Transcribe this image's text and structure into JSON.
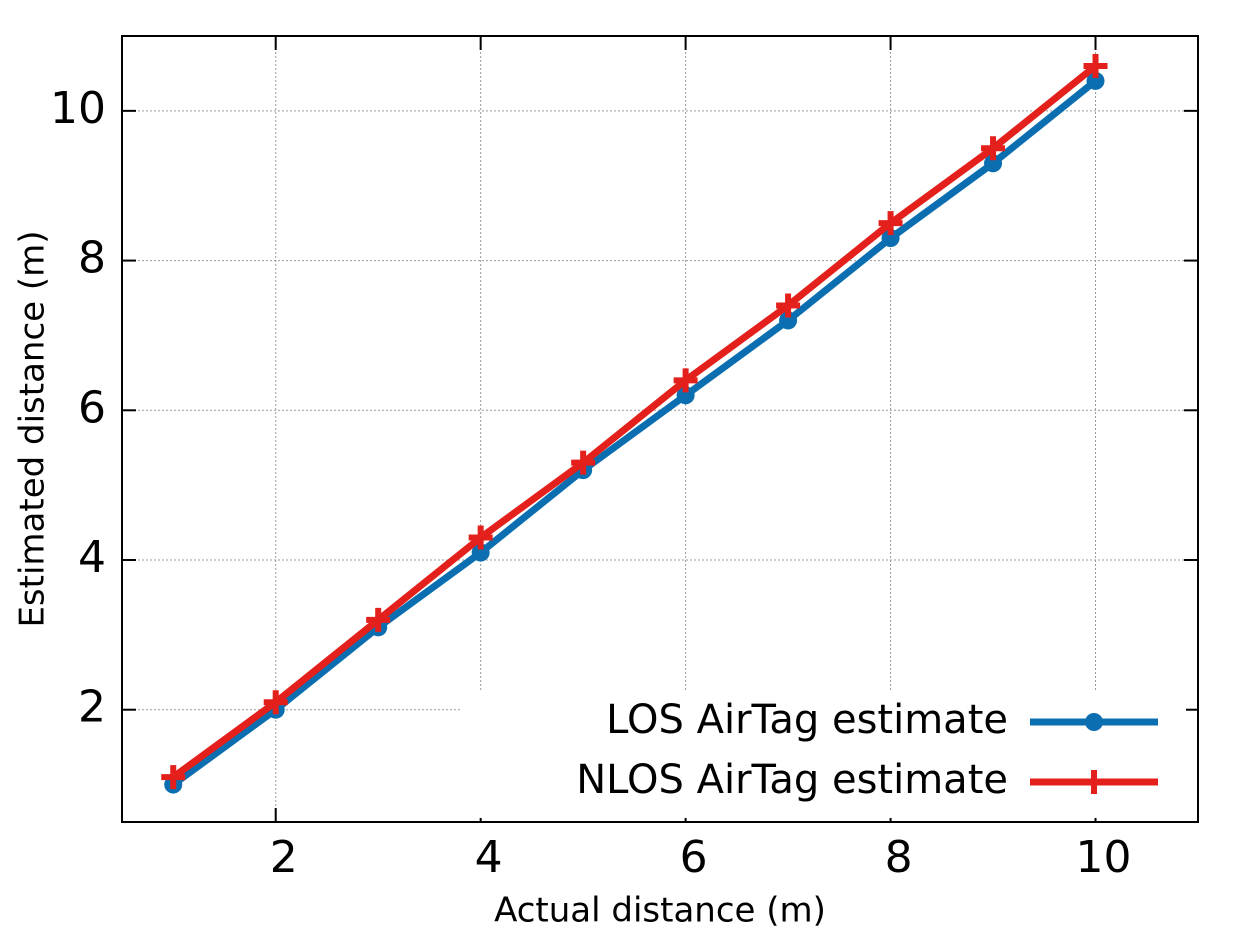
{
  "chart_data": {
    "type": "line",
    "x_label": "Actual distance (m)",
    "y_label": "Estimated distance (m)",
    "x": [
      1,
      2,
      3,
      4,
      5,
      6,
      7,
      8,
      9,
      10
    ],
    "series": [
      {
        "name": "LOS AirTag estimate",
        "color": "#0a6eb0",
        "marker": "circle",
        "values": [
          1,
          2,
          3.1,
          4.1,
          5.2,
          6.2,
          7.2,
          8.3,
          9.3,
          10.4
        ]
      },
      {
        "name": "NLOS AirTag estimate",
        "color": "#e3201b",
        "marker": "plus",
        "values": [
          1.1,
          2.1,
          3.2,
          4.3,
          5.3,
          6.4,
          7.4,
          8.5,
          9.5,
          10.6
        ]
      }
    ],
    "xlim": [
      0.5,
      11
    ],
    "ylim": [
      0.5,
      11
    ],
    "xticks": [
      2,
      4,
      6,
      8,
      10
    ],
    "yticks": [
      2,
      4,
      6,
      8,
      10
    ],
    "grid": true,
    "legend": "lower right"
  }
}
